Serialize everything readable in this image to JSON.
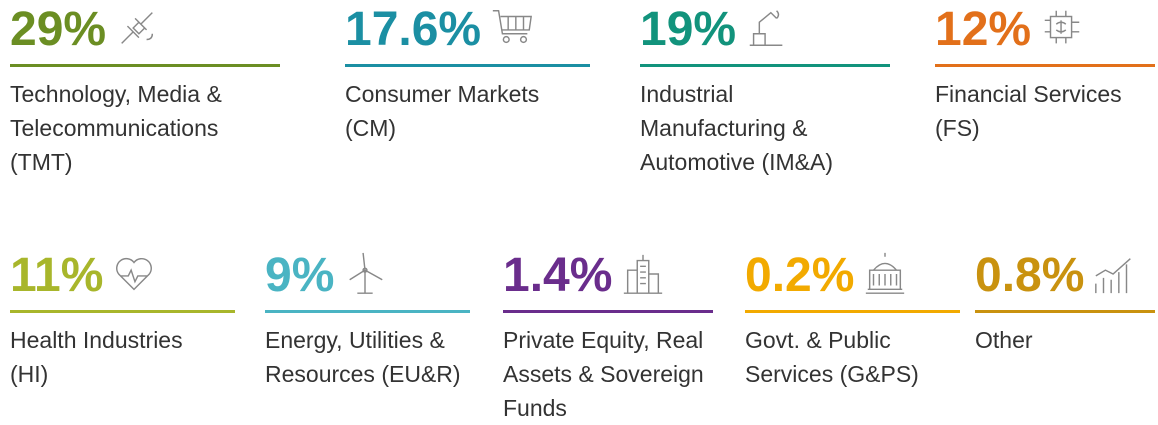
{
  "items": [
    {
      "value_label": "29%",
      "label": "Technology, Media & Telecommunications (TMT)",
      "color": "#6b8e23"
    },
    {
      "value_label": "17.6%",
      "label": "Consumer Markets (CM)",
      "color": "#1b8fa3"
    },
    {
      "value_label": "19%",
      "label": "Industrial Manufacturing & Automotive (IM&A)",
      "color": "#12937c"
    },
    {
      "value_label": "12%",
      "label": "Financial Services (FS)",
      "color": "#e2701a"
    },
    {
      "value_label": "11%",
      "label": "Health Industries (HI)",
      "color": "#a8b62b"
    },
    {
      "value_label": "9%",
      "label": "Energy, Utilities & Resources (EU&R)",
      "color": "#4ab4c3"
    },
    {
      "value_label": "1.4%",
      "label": "Private Equity, Real Assets & Sovereign Funds",
      "color": "#6a2d8c"
    },
    {
      "value_label": "0.2%",
      "label": "Govt. & Public Services (G&PS)",
      "color": "#f2aa00"
    },
    {
      "value_label": "0.8%",
      "label": "Other",
      "color": "#c9920f"
    }
  ]
}
